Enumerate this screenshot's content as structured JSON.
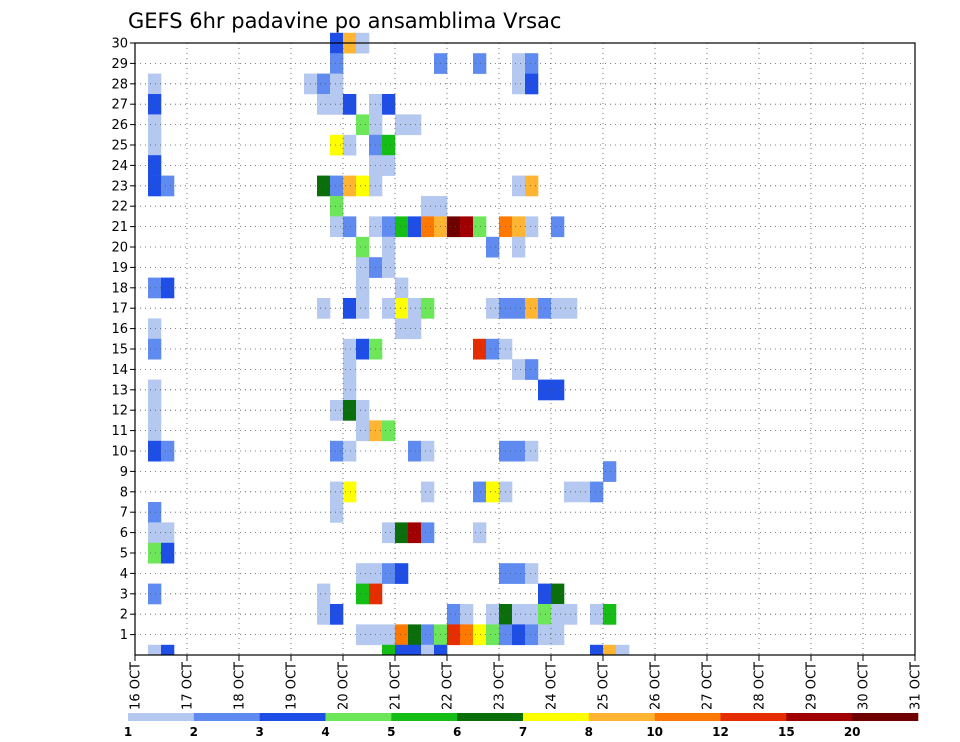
{
  "chart_data": {
    "type": "heatmap",
    "title": "GEFS 6hr padavine po ansamblima Vrsac",
    "x_tick_labels": [
      "16 OCT",
      "17 OCT",
      "18 OCT",
      "19 OCT",
      "20 OCT",
      "21 OCT",
      "22 OCT",
      "23 OCT",
      "24 OCT",
      "25 OCT",
      "26 OCT",
      "27 OCT",
      "28 OCT",
      "29 OCT",
      "30 OCT",
      "31 OCT"
    ],
    "y_tick_labels": [
      "1",
      "2",
      "3",
      "4",
      "5",
      "6",
      "7",
      "8",
      "9",
      "10",
      "11",
      "12",
      "13",
      "14",
      "15",
      "16",
      "17",
      "18",
      "19",
      "20",
      "21",
      "22",
      "23",
      "24",
      "25",
      "26",
      "27",
      "28",
      "29",
      "30"
    ],
    "x_range": [
      "16 OCT 00Z",
      "31 OCT 00Z"
    ],
    "x_step_hours": 6,
    "members_range": [
      0,
      30
    ],
    "grid": "dotted",
    "colorbar": {
      "placement": "bottom",
      "bounds": [
        1,
        2,
        3,
        4,
        5,
        6,
        7,
        8,
        10,
        12,
        15,
        20
      ],
      "labels": [
        "1",
        "2",
        "3",
        "4",
        "5",
        "6",
        "7",
        "8",
        "10",
        "12",
        "15",
        "20"
      ],
      "colors": [
        "#b4c8f0",
        "#5f8af0",
        "#1e4ee6",
        "#6ee65a",
        "#14be14",
        "#0a6e0a",
        "#ffff00",
        "#ffb432",
        "#ff7800",
        "#e62d00",
        "#a00000",
        "#6e0000"
      ]
    },
    "cells_note": "each cell = [member, step_index(6h from 16 OCT 00Z), class_index into colorbar colors]",
    "cells": [
      [
        30,
        15,
        2
      ],
      [
        30,
        16,
        7
      ],
      [
        30,
        17,
        0
      ],
      [
        29,
        15,
        1
      ],
      [
        29,
        23,
        1
      ],
      [
        29,
        26,
        1
      ],
      [
        29,
        29,
        0
      ],
      [
        29,
        30,
        1
      ],
      [
        28,
        1,
        0
      ],
      [
        28,
        13,
        0
      ],
      [
        28,
        14,
        1
      ],
      [
        28,
        15,
        0
      ],
      [
        28,
        29,
        0
      ],
      [
        28,
        30,
        2
      ],
      [
        27,
        1,
        2
      ],
      [
        27,
        14,
        0
      ],
      [
        27,
        15,
        0
      ],
      [
        27,
        16,
        2
      ],
      [
        27,
        18,
        0
      ],
      [
        27,
        19,
        2
      ],
      [
        26,
        1,
        0
      ],
      [
        26,
        17,
        3
      ],
      [
        26,
        18,
        0
      ],
      [
        26,
        20,
        0
      ],
      [
        26,
        21,
        0
      ],
      [
        25,
        1,
        0
      ],
      [
        25,
        15,
        6
      ],
      [
        25,
        16,
        0
      ],
      [
        25,
        18,
        1
      ],
      [
        25,
        19,
        4
      ],
      [
        24,
        1,
        2
      ],
      [
        24,
        18,
        0
      ],
      [
        24,
        19,
        0
      ],
      [
        23,
        1,
        2
      ],
      [
        23,
        2,
        1
      ],
      [
        23,
        14,
        5
      ],
      [
        23,
        15,
        1
      ],
      [
        23,
        16,
        7
      ],
      [
        23,
        17,
        6
      ],
      [
        23,
        18,
        0
      ],
      [
        23,
        29,
        0
      ],
      [
        23,
        30,
        7
      ],
      [
        22,
        15,
        3
      ],
      [
        22,
        22,
        0
      ],
      [
        22,
        23,
        0
      ],
      [
        21,
        15,
        0
      ],
      [
        21,
        16,
        1
      ],
      [
        21,
        18,
        0
      ],
      [
        21,
        19,
        1
      ],
      [
        21,
        20,
        4
      ],
      [
        21,
        21,
        2
      ],
      [
        21,
        22,
        8
      ],
      [
        21,
        23,
        7
      ],
      [
        21,
        24,
        11
      ],
      [
        21,
        25,
        10
      ],
      [
        21,
        26,
        3
      ],
      [
        21,
        28,
        8
      ],
      [
        21,
        29,
        7
      ],
      [
        21,
        30,
        0
      ],
      [
        21,
        32,
        1
      ],
      [
        20,
        17,
        3
      ],
      [
        20,
        19,
        0
      ],
      [
        20,
        27,
        1
      ],
      [
        20,
        29,
        0
      ],
      [
        19,
        17,
        0
      ],
      [
        19,
        18,
        1
      ],
      [
        19,
        19,
        0
      ],
      [
        18,
        1,
        1
      ],
      [
        18,
        2,
        2
      ],
      [
        18,
        17,
        0
      ],
      [
        18,
        20,
        0
      ],
      [
        17,
        14,
        0
      ],
      [
        17,
        16,
        2
      ],
      [
        17,
        17,
        0
      ],
      [
        17,
        19,
        0
      ],
      [
        17,
        20,
        6
      ],
      [
        17,
        21,
        0
      ],
      [
        17,
        22,
        3
      ],
      [
        17,
        27,
        0
      ],
      [
        17,
        28,
        1
      ],
      [
        17,
        29,
        1
      ],
      [
        17,
        30,
        7
      ],
      [
        17,
        31,
        1
      ],
      [
        17,
        32,
        0
      ],
      [
        17,
        33,
        0
      ],
      [
        16,
        1,
        0
      ],
      [
        16,
        20,
        0
      ],
      [
        16,
        21,
        0
      ],
      [
        15,
        1,
        1
      ],
      [
        15,
        16,
        0
      ],
      [
        15,
        17,
        2
      ],
      [
        15,
        18,
        3
      ],
      [
        15,
        26,
        9
      ],
      [
        15,
        27,
        1
      ],
      [
        15,
        28,
        0
      ],
      [
        14,
        16,
        0
      ],
      [
        14,
        29,
        0
      ],
      [
        14,
        30,
        1
      ],
      [
        13,
        1,
        0
      ],
      [
        13,
        16,
        0
      ],
      [
        13,
        31,
        2
      ],
      [
        13,
        32,
        2
      ],
      [
        12,
        1,
        0
      ],
      [
        12,
        15,
        0
      ],
      [
        12,
        16,
        5
      ],
      [
        12,
        17,
        0
      ],
      [
        11,
        1,
        0
      ],
      [
        11,
        17,
        0
      ],
      [
        11,
        18,
        7
      ],
      [
        11,
        19,
        3
      ],
      [
        10,
        1,
        2
      ],
      [
        10,
        2,
        1
      ],
      [
        10,
        15,
        1
      ],
      [
        10,
        16,
        0
      ],
      [
        10,
        21,
        1
      ],
      [
        10,
        22,
        0
      ],
      [
        10,
        28,
        1
      ],
      [
        10,
        29,
        1
      ],
      [
        10,
        30,
        0
      ],
      [
        9,
        36,
        1
      ],
      [
        8,
        15,
        0
      ],
      [
        8,
        16,
        6
      ],
      [
        8,
        22,
        0
      ],
      [
        8,
        26,
        1
      ],
      [
        8,
        27,
        6
      ],
      [
        8,
        28,
        0
      ],
      [
        8,
        33,
        0
      ],
      [
        8,
        34,
        0
      ],
      [
        8,
        35,
        1
      ],
      [
        7,
        1,
        1
      ],
      [
        7,
        15,
        0
      ],
      [
        6,
        1,
        0
      ],
      [
        6,
        2,
        0
      ],
      [
        6,
        19,
        0
      ],
      [
        6,
        20,
        5
      ],
      [
        6,
        21,
        10
      ],
      [
        6,
        22,
        1
      ],
      [
        6,
        26,
        0
      ],
      [
        5,
        1,
        3
      ],
      [
        5,
        2,
        2
      ],
      [
        4,
        17,
        0
      ],
      [
        4,
        18,
        0
      ],
      [
        4,
        19,
        1
      ],
      [
        4,
        20,
        2
      ],
      [
        4,
        28,
        1
      ],
      [
        4,
        29,
        1
      ],
      [
        4,
        30,
        0
      ],
      [
        3,
        1,
        1
      ],
      [
        3,
        14,
        0
      ],
      [
        3,
        17,
        4
      ],
      [
        3,
        18,
        9
      ],
      [
        3,
        31,
        2
      ],
      [
        3,
        32,
        5
      ],
      [
        2,
        14,
        0
      ],
      [
        2,
        15,
        2
      ],
      [
        2,
        24,
        1
      ],
      [
        2,
        25,
        0
      ],
      [
        2,
        27,
        0
      ],
      [
        2,
        28,
        5
      ],
      [
        2,
        29,
        0
      ],
      [
        2,
        30,
        0
      ],
      [
        2,
        31,
        3
      ],
      [
        2,
        32,
        0
      ],
      [
        2,
        33,
        0
      ],
      [
        2,
        35,
        0
      ],
      [
        2,
        36,
        4
      ],
      [
        1,
        17,
        0
      ],
      [
        1,
        18,
        0
      ],
      [
        1,
        19,
        0
      ],
      [
        1,
        20,
        8
      ],
      [
        1,
        21,
        5
      ],
      [
        1,
        22,
        1
      ],
      [
        1,
        23,
        3
      ],
      [
        1,
        24,
        9
      ],
      [
        1,
        25,
        8
      ],
      [
        1,
        26,
        6
      ],
      [
        1,
        27,
        3
      ],
      [
        1,
        28,
        1
      ],
      [
        1,
        29,
        2
      ],
      [
        1,
        30,
        1
      ],
      [
        1,
        31,
        0
      ],
      [
        1,
        32,
        0
      ],
      [
        0,
        1,
        0
      ],
      [
        0,
        2,
        2
      ],
      [
        0,
        19,
        4
      ],
      [
        0,
        20,
        2
      ],
      [
        0,
        21,
        2
      ],
      [
        0,
        22,
        0
      ],
      [
        0,
        23,
        2
      ],
      [
        0,
        35,
        2
      ],
      [
        0,
        36,
        7
      ],
      [
        0,
        37,
        0
      ]
    ]
  }
}
